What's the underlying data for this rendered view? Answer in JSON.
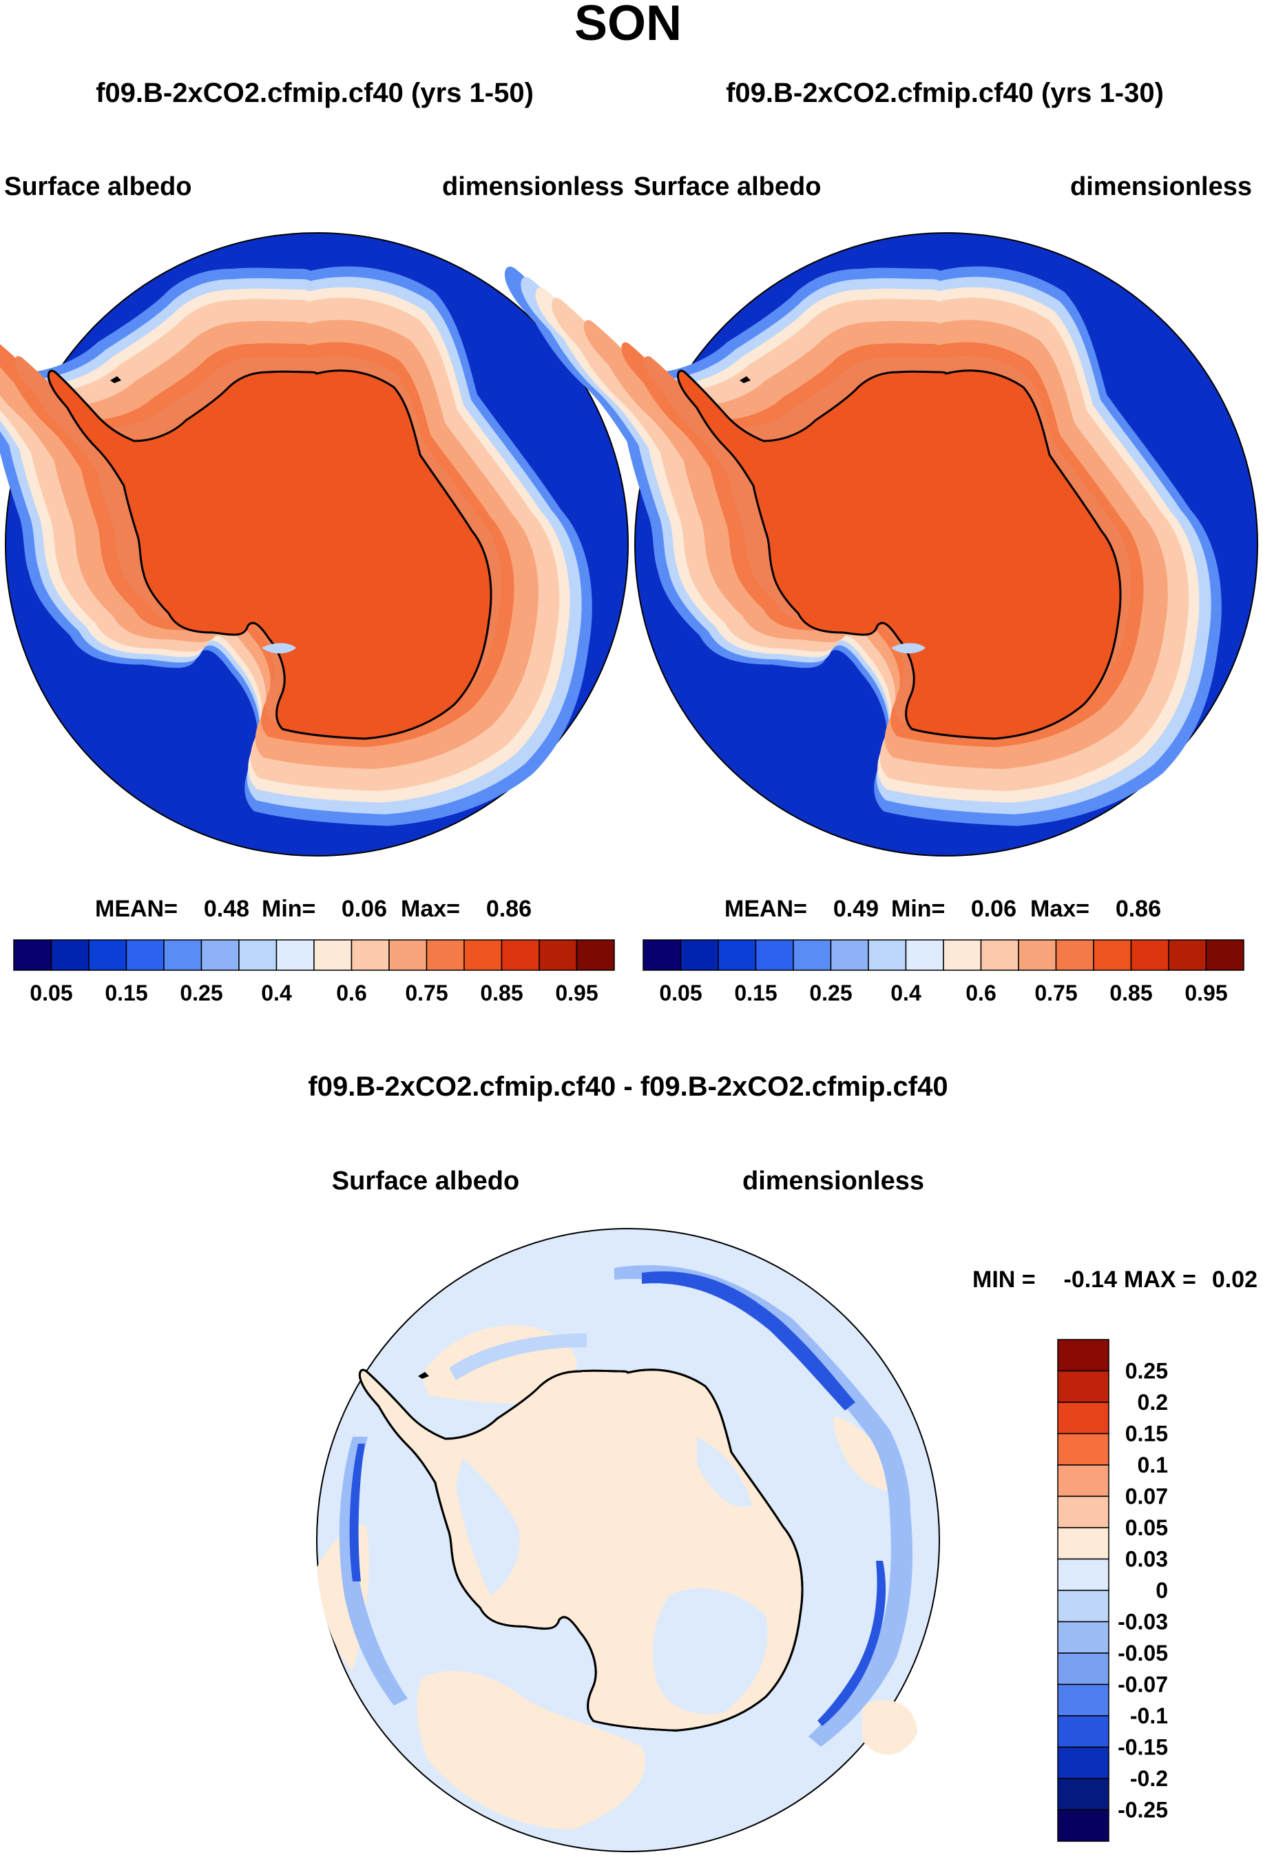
{
  "season": "SON",
  "chart_data": [
    {
      "type": "heatmap",
      "projection": "south polar stereographic",
      "case_title": "f09.B-2xCO2.cfmip.cf40 (yrs 1-50)",
      "variable": "Surface albedo",
      "units": "dimensionless",
      "stats": {
        "mean_label": "MEAN=",
        "mean": "0.48",
        "min_label": "Min=",
        "min": "0.06",
        "max_label": "Max=",
        "max": "0.86"
      },
      "colorbar": {
        "orientation": "horizontal",
        "labels": [
          "0.05",
          "0.15",
          "0.25",
          "0.4",
          "0.6",
          "0.75",
          "0.85",
          "0.95"
        ],
        "colors": [
          "#08006e",
          "#0024b0",
          "#0a40d8",
          "#2c62f0",
          "#5a8cf6",
          "#8eb2f8",
          "#bcd6fb",
          "#deecfd",
          "#fde9d7",
          "#fccbae",
          "#f9a57c",
          "#f47a48",
          "#ee5520",
          "#dc3510",
          "#b41f06",
          "#7c0a02"
        ]
      },
      "field": {
        "ocean_open": "#0a2fc6",
        "sea_ice_margin": "#bcd6fb",
        "sea_ice": "#f9a57c",
        "ice_sheet": "#ef5522"
      }
    },
    {
      "type": "heatmap",
      "projection": "south polar stereographic",
      "case_title": "f09.B-2xCO2.cfmip.cf40 (yrs 1-30)",
      "variable": "Surface albedo",
      "units": "dimensionless",
      "stats": {
        "mean_label": "MEAN=",
        "mean": "0.49",
        "min_label": "Min=",
        "min": "0.06",
        "max_label": "Max=",
        "max": "0.86"
      },
      "colorbar": {
        "orientation": "horizontal",
        "labels": [
          "0.05",
          "0.15",
          "0.25",
          "0.4",
          "0.6",
          "0.75",
          "0.85",
          "0.95"
        ],
        "colors": [
          "#08006e",
          "#0024b0",
          "#0a40d8",
          "#2c62f0",
          "#5a8cf6",
          "#8eb2f8",
          "#bcd6fb",
          "#deecfd",
          "#fde9d7",
          "#fccbae",
          "#f9a57c",
          "#f47a48",
          "#ee5520",
          "#dc3510",
          "#b41f06",
          "#7c0a02"
        ]
      },
      "field": {
        "ocean_open": "#0a2fc6",
        "sea_ice_margin": "#bcd6fb",
        "sea_ice": "#f9a57c",
        "ice_sheet": "#ef5522"
      }
    },
    {
      "type": "heatmap",
      "projection": "south polar stereographic",
      "case_title": "f09.B-2xCO2.cfmip.cf40 - f09.B-2xCO2.cfmip.cf40",
      "variable": "Surface albedo",
      "units": "dimensionless",
      "stats": {
        "min_label": "MIN =",
        "min": "-0.14",
        "max_label": "MAX =",
        "max": "0.02"
      },
      "colorbar": {
        "orientation": "vertical",
        "labels": [
          "0.25",
          "0.2",
          "0.15",
          "0.1",
          "0.07",
          "0.05",
          "0.03",
          "0",
          "-0.03",
          "-0.05",
          "-0.07",
          "-0.1",
          "-0.15",
          "-0.2",
          "-0.25"
        ],
        "colors": [
          "#8a0a04",
          "#c0220a",
          "#e8431a",
          "#f6703e",
          "#f9a27c",
          "#fcc6a8",
          "#fdebd8",
          "#dceafc",
          "#bfd6fb",
          "#9cbcf7",
          "#7aa0f2",
          "#4f7eee",
          "#2855e0",
          "#0a2fb8",
          "#041a80",
          "#080060"
        ]
      },
      "field": {
        "background": "#dceafc",
        "positive": "#fdebd8",
        "moderate_negative": "#9cbcf7",
        "strong_negative": "#2855e0"
      }
    }
  ]
}
